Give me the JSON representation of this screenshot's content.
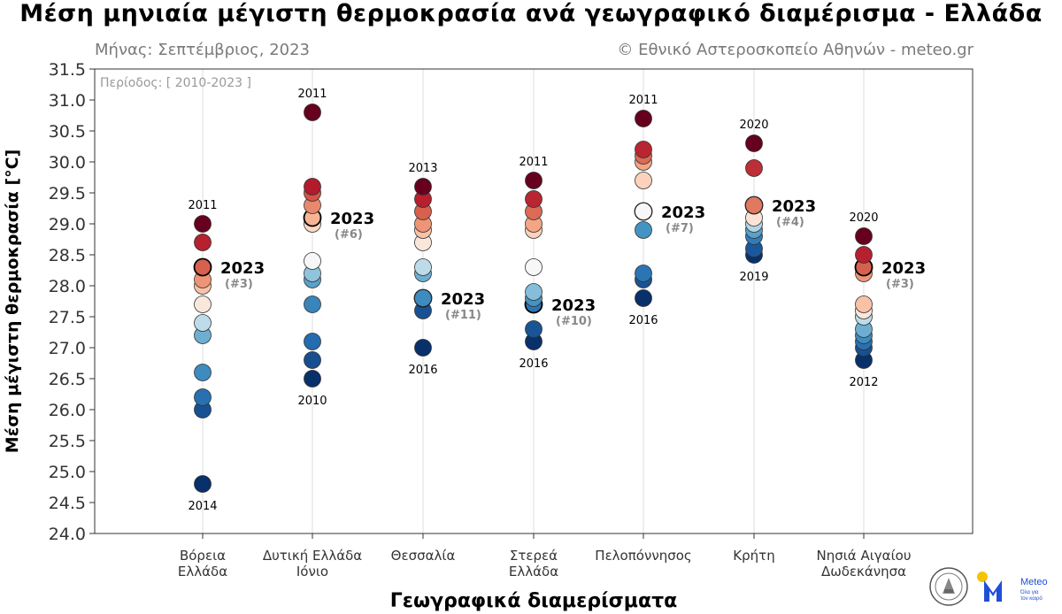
{
  "title": "Μέση μηνιαία μέγιστη θερμοκρασία ανά γεωγραφικό διαμέρισμα - Ελλάδα",
  "subtitle_left": "Μήνας: Σεπτέμβριος, 2023",
  "subtitle_right": "© Εθνικό Αστεροσκοπείο Αθηνών - meteo.gr",
  "period_label": "Περίοδος: [ 2010-2023 ]",
  "logos": {
    "seal": "noa-seal-logo",
    "meteo": "meteo-logo",
    "meteo_name": "Meteo",
    "meteo_tagline_1": "Όλα για",
    "meteo_tagline_2": "τον καιρό"
  },
  "colors": {
    "cold": "#0b2d5c",
    "warm": "#6b0f1f",
    "grid": "#dcdcdc",
    "highlight_rank": "#888888"
  },
  "chart_data": {
    "type": "scatter",
    "xlabel": "Γεωγραφικά διαμερίσματα",
    "ylabel": "Μέση μέγιστη θερμοκρασία [°C]",
    "ylim": [
      24.0,
      31.5
    ],
    "yticks": [
      "24.0",
      "24.5",
      "25.0",
      "25.5",
      "26.0",
      "26.5",
      "27.0",
      "27.5",
      "28.0",
      "28.5",
      "29.0",
      "29.5",
      "30.0",
      "30.5",
      "31.0",
      "31.5"
    ],
    "grid": "vertical",
    "categories": [
      {
        "lines": [
          "Βόρεια",
          "Ελλάδα"
        ],
        "values": [
          29.0,
          28.7,
          28.3,
          28.1,
          28.0,
          27.7,
          27.4,
          27.2,
          26.6,
          26.2,
          26.0,
          24.8
        ],
        "highlight": 28.3,
        "highlight_label": "2023",
        "rank_label": "(#3)",
        "max_value": 29.0,
        "max_year": "2011",
        "min_value": 24.8,
        "min_year": "2014"
      },
      {
        "lines": [
          "Δυτική Ελλάδα",
          "Ιόνιο"
        ],
        "values": [
          30.8,
          29.6,
          29.5,
          29.3,
          29.1,
          29.0,
          28.4,
          28.2,
          28.1,
          27.7,
          27.1,
          26.8,
          26.5
        ],
        "highlight": 29.1,
        "highlight_label": "2023",
        "rank_label": "(#6)",
        "max_value": 30.8,
        "max_year": "2011",
        "min_value": 26.5,
        "min_year": "2010"
      },
      {
        "lines": [
          "Θεσσαλία"
        ],
        "values": [
          29.6,
          29.4,
          29.2,
          29.0,
          28.9,
          28.7,
          28.3,
          28.2,
          27.8,
          27.8,
          27.6,
          27.0
        ],
        "highlight": 27.8,
        "highlight_label": "2023",
        "rank_label": "(#11)",
        "max_value": 29.6,
        "max_year": "2013",
        "min_value": 27.0,
        "min_year": "2016"
      },
      {
        "lines": [
          "Στερεά",
          "Ελλάδα"
        ],
        "values": [
          29.7,
          29.4,
          29.2,
          29.0,
          28.9,
          28.3,
          27.9,
          27.8,
          27.7,
          27.3,
          27.1
        ],
        "highlight": 27.7,
        "highlight_label": "2023",
        "rank_label": "(#10)",
        "max_value": 29.7,
        "max_year": "2011",
        "min_value": 27.1,
        "min_year": "2016"
      },
      {
        "lines": [
          "Πελοπόννησος"
        ],
        "values": [
          30.7,
          30.2,
          30.1,
          30.0,
          29.7,
          29.2,
          29.2,
          28.9,
          28.2,
          28.1,
          27.8
        ],
        "highlight": 29.2,
        "highlight_label": "2023",
        "rank_label": "(#7)",
        "max_value": 30.7,
        "max_year": "2011",
        "min_value": 27.8,
        "min_year": "2016"
      },
      {
        "lines": [
          "Κρήτη"
        ],
        "values": [
          30.3,
          29.9,
          29.3,
          29.3,
          29.1,
          29.0,
          28.9,
          28.8,
          28.6,
          28.5
        ],
        "highlight": 29.3,
        "highlight_label": "2023",
        "rank_label": "(#4)",
        "max_value": 30.3,
        "max_year": "2020",
        "min_value": 28.5,
        "min_year": "2019"
      },
      {
        "lines": [
          "Νησιά Αιγαίου",
          "Δωδεκάνησα"
        ],
        "values": [
          28.8,
          28.5,
          28.3,
          28.2,
          27.7,
          27.6,
          27.5,
          27.3,
          27.2,
          27.1,
          27.0,
          26.8
        ],
        "highlight": 28.3,
        "highlight_label": "2023",
        "rank_label": "(#3)",
        "max_value": 28.8,
        "max_year": "2020",
        "min_value": 26.8,
        "min_year": "2012"
      }
    ]
  }
}
